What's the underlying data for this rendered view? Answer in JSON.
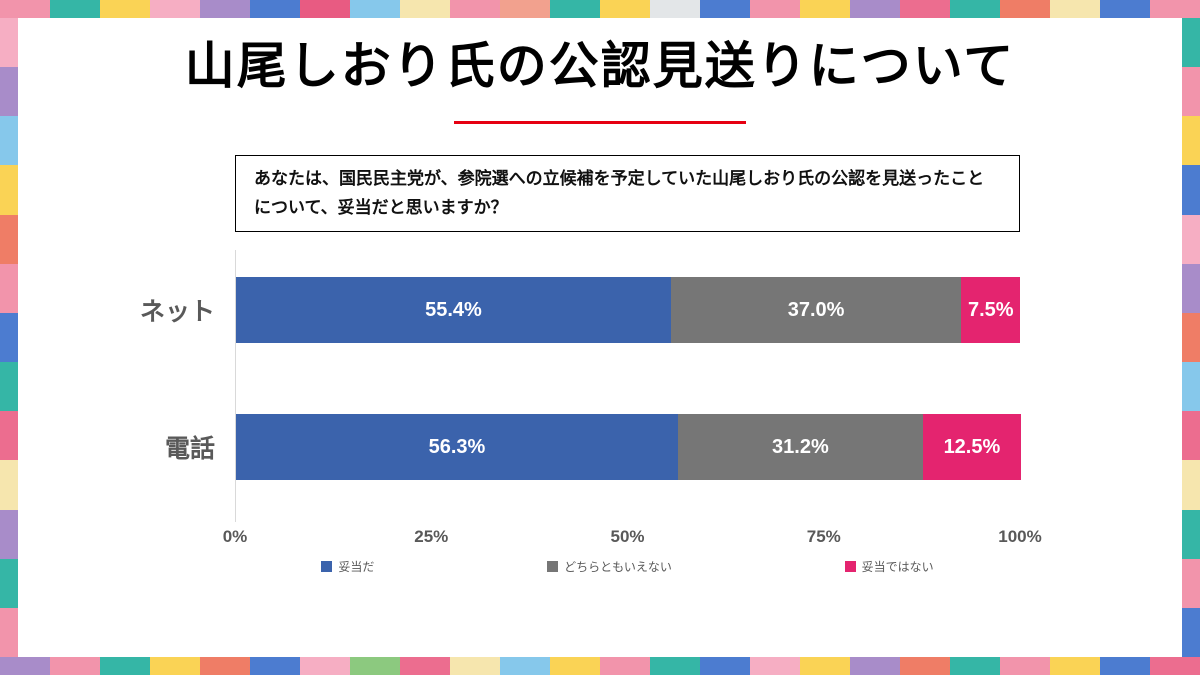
{
  "title": "山尾しおり氏の公認見送りについて",
  "question": "あなたは、国民民主党が、参院選への立候補を予定していた山尾しおり氏の公認を見送ったことについて、妥当だと思いますか？",
  "chart_data": {
    "type": "bar",
    "orientation": "horizontal",
    "stacked": true,
    "categories": [
      "ネット",
      "電話"
    ],
    "series": [
      {
        "name": "妥当だ",
        "color": "#3B63AC",
        "values": [
          55.4,
          56.3
        ]
      },
      {
        "name": "どちらともいえない",
        "color": "#767676",
        "values": [
          37.0,
          31.2
        ]
      },
      {
        "name": "妥当ではない",
        "color": "#E4246F",
        "values": [
          7.5,
          12.5
        ]
      }
    ],
    "x_ticks": [
      "0%",
      "25%",
      "50%",
      "75%",
      "100%"
    ],
    "xlim": [
      0,
      100
    ],
    "value_label_format": "0.0%",
    "legend_position": "bottom",
    "grid": false
  },
  "theme": {
    "background": "#FFFFFF",
    "title_underline_color": "#E60012",
    "axis_label_color": "#595959",
    "bar_value_text_color": "#FFFFFF"
  },
  "frame": {
    "top": [
      "#F294AB",
      "#35B6A6",
      "#FAD355",
      "#F6AEC3",
      "#A88CC9",
      "#4C7CD0",
      "#E85B82",
      "#86C8EB",
      "#F6E6AE",
      "#F294AB",
      "#F2A18E",
      "#35B6A6",
      "#FAD355",
      "#E3E6E8",
      "#4C7CD0",
      "#F294AB",
      "#FAD355",
      "#A88CC9",
      "#EC6D8F",
      "#35B6A6",
      "#EF7D66",
      "#F6E6AE",
      "#4C7CD0",
      "#F294AB"
    ],
    "bottom": [
      "#A88CC9",
      "#F294AB",
      "#35B6A6",
      "#FAD355",
      "#EF7D66",
      "#4C7CD0",
      "#F6AEC3",
      "#8CC97F",
      "#EC6D8F",
      "#F6E6AE",
      "#86C8EB",
      "#FAD355",
      "#F294AB",
      "#35B6A6",
      "#4C7CD0",
      "#F6AEC3",
      "#FAD355",
      "#A88CC9",
      "#EF7D66",
      "#35B6A6",
      "#F294AB",
      "#FAD355",
      "#4C7CD0",
      "#EC6D8F"
    ],
    "left": [
      "#F6AEC3",
      "#A88CC9",
      "#86C8EB",
      "#FAD355",
      "#EF7D66",
      "#F294AB",
      "#4C7CD0",
      "#35B6A6",
      "#EC6D8F",
      "#F6E6AE",
      "#A88CC9",
      "#35B6A6",
      "#F294AB"
    ],
    "right": [
      "#35B6A6",
      "#F294AB",
      "#FAD355",
      "#4C7CD0",
      "#F6AEC3",
      "#A88CC9",
      "#EF7D66",
      "#86C8EB",
      "#EC6D8F",
      "#F6E6AE",
      "#35B6A6",
      "#F294AB",
      "#4C7CD0"
    ]
  }
}
